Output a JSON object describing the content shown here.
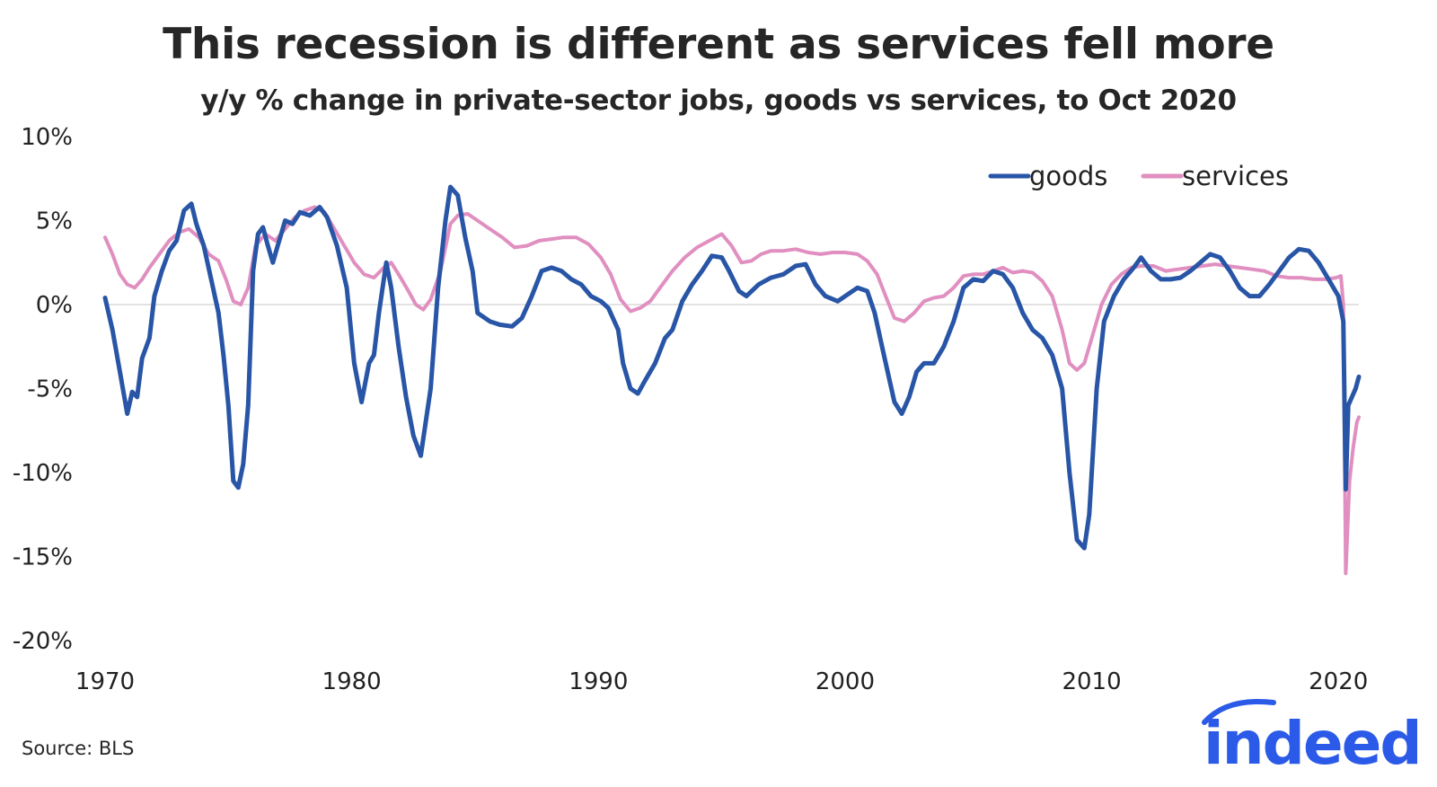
{
  "chart_data": {
    "type": "line",
    "title": "This recession is different as services fell more",
    "subtitle": "y/y % change in private-sector jobs, goods vs services, to Oct 2020",
    "xlabel": "",
    "ylabel": "",
    "xlim": [
      1970,
      2020.83
    ],
    "ylim": [
      -20,
      10
    ],
    "x_ticks": [
      "1970",
      "1980",
      "1990",
      "2000",
      "2010",
      "2020"
    ],
    "y_ticks": [
      "10%",
      "5%",
      "0%",
      "-5%",
      "-10%",
      "-15%",
      "-20%"
    ],
    "legend_position": "top-right",
    "series": [
      {
        "name": "goods",
        "color": "#2855a6",
        "points": [
          [
            1970.0,
            0.4
          ],
          [
            1970.3,
            -1.5
          ],
          [
            1970.6,
            -4.0
          ],
          [
            1970.9,
            -6.5
          ],
          [
            1971.1,
            -5.2
          ],
          [
            1971.3,
            -5.5
          ],
          [
            1971.5,
            -3.2
          ],
          [
            1971.8,
            -2.0
          ],
          [
            1972.0,
            0.5
          ],
          [
            1972.3,
            2.0
          ],
          [
            1972.6,
            3.2
          ],
          [
            1972.9,
            3.8
          ],
          [
            1973.2,
            5.6
          ],
          [
            1973.5,
            6.0
          ],
          [
            1973.7,
            4.8
          ],
          [
            1974.0,
            3.5
          ],
          [
            1974.3,
            1.5
          ],
          [
            1974.6,
            -0.5
          ],
          [
            1974.8,
            -3.0
          ],
          [
            1975.0,
            -6.0
          ],
          [
            1975.2,
            -10.5
          ],
          [
            1975.4,
            -10.9
          ],
          [
            1975.6,
            -9.5
          ],
          [
            1975.8,
            -6.0
          ],
          [
            1976.0,
            2.0
          ],
          [
            1976.2,
            4.2
          ],
          [
            1976.4,
            4.6
          ],
          [
            1976.6,
            3.5
          ],
          [
            1976.8,
            2.5
          ],
          [
            1977.0,
            3.5
          ],
          [
            1977.3,
            5.0
          ],
          [
            1977.6,
            4.8
          ],
          [
            1977.9,
            5.5
          ],
          [
            1978.3,
            5.3
          ],
          [
            1978.7,
            5.8
          ],
          [
            1979.0,
            5.2
          ],
          [
            1979.4,
            3.5
          ],
          [
            1979.8,
            1.0
          ],
          [
            1980.1,
            -3.5
          ],
          [
            1980.4,
            -5.8
          ],
          [
            1980.7,
            -3.5
          ],
          [
            1980.9,
            -3.0
          ],
          [
            1981.1,
            -0.5
          ],
          [
            1981.4,
            2.5
          ],
          [
            1981.6,
            1.0
          ],
          [
            1981.9,
            -2.5
          ],
          [
            1982.2,
            -5.5
          ],
          [
            1982.5,
            -7.8
          ],
          [
            1982.8,
            -9.0
          ],
          [
            1983.0,
            -7.0
          ],
          [
            1983.2,
            -5.0
          ],
          [
            1983.5,
            1.0
          ],
          [
            1983.8,
            5.0
          ],
          [
            1984.0,
            7.0
          ],
          [
            1984.3,
            6.5
          ],
          [
            1984.6,
            4.0
          ],
          [
            1984.9,
            2.0
          ],
          [
            1985.1,
            -0.5
          ],
          [
            1985.6,
            -1.0
          ],
          [
            1986.0,
            -1.2
          ],
          [
            1986.5,
            -1.3
          ],
          [
            1986.9,
            -0.8
          ],
          [
            1987.3,
            0.5
          ],
          [
            1987.7,
            2.0
          ],
          [
            1988.1,
            2.2
          ],
          [
            1988.5,
            2.0
          ],
          [
            1988.9,
            1.5
          ],
          [
            1989.3,
            1.2
          ],
          [
            1989.7,
            0.5
          ],
          [
            1990.1,
            0.2
          ],
          [
            1990.4,
            -0.2
          ],
          [
            1990.8,
            -1.5
          ],
          [
            1991.0,
            -3.5
          ],
          [
            1991.3,
            -5.0
          ],
          [
            1991.6,
            -5.3
          ],
          [
            1991.9,
            -4.5
          ],
          [
            1992.3,
            -3.5
          ],
          [
            1992.7,
            -2.0
          ],
          [
            1993.0,
            -1.5
          ],
          [
            1993.4,
            0.2
          ],
          [
            1993.8,
            1.2
          ],
          [
            1994.2,
            2.0
          ],
          [
            1994.6,
            2.9
          ],
          [
            1995.0,
            2.8
          ],
          [
            1995.3,
            2.0
          ],
          [
            1995.7,
            0.8
          ],
          [
            1996.0,
            0.5
          ],
          [
            1996.5,
            1.2
          ],
          [
            1997.0,
            1.6
          ],
          [
            1997.5,
            1.8
          ],
          [
            1998.0,
            2.3
          ],
          [
            1998.4,
            2.4
          ],
          [
            1998.8,
            1.2
          ],
          [
            1999.2,
            0.5
          ],
          [
            1999.7,
            0.2
          ],
          [
            2000.1,
            0.6
          ],
          [
            2000.5,
            1.0
          ],
          [
            2000.9,
            0.8
          ],
          [
            2001.2,
            -0.5
          ],
          [
            2001.5,
            -2.5
          ],
          [
            2001.8,
            -4.5
          ],
          [
            2002.0,
            -5.8
          ],
          [
            2002.3,
            -6.5
          ],
          [
            2002.6,
            -5.5
          ],
          [
            2002.9,
            -4.0
          ],
          [
            2003.2,
            -3.5
          ],
          [
            2003.6,
            -3.5
          ],
          [
            2004.0,
            -2.5
          ],
          [
            2004.4,
            -1.0
          ],
          [
            2004.8,
            1.0
          ],
          [
            2005.2,
            1.5
          ],
          [
            2005.6,
            1.4
          ],
          [
            2006.0,
            2.0
          ],
          [
            2006.4,
            1.8
          ],
          [
            2006.8,
            1.0
          ],
          [
            2007.2,
            -0.5
          ],
          [
            2007.6,
            -1.5
          ],
          [
            2008.0,
            -2.0
          ],
          [
            2008.4,
            -3.0
          ],
          [
            2008.8,
            -5.0
          ],
          [
            2009.1,
            -10.0
          ],
          [
            2009.4,
            -14.0
          ],
          [
            2009.7,
            -14.5
          ],
          [
            2009.9,
            -12.5
          ],
          [
            2010.2,
            -5.0
          ],
          [
            2010.5,
            -1.0
          ],
          [
            2010.9,
            0.5
          ],
          [
            2011.3,
            1.5
          ],
          [
            2011.7,
            2.2
          ],
          [
            2012.0,
            2.8
          ],
          [
            2012.4,
            2.0
          ],
          [
            2012.8,
            1.5
          ],
          [
            2013.2,
            1.5
          ],
          [
            2013.6,
            1.6
          ],
          [
            2014.0,
            2.0
          ],
          [
            2014.4,
            2.5
          ],
          [
            2014.8,
            3.0
          ],
          [
            2015.2,
            2.8
          ],
          [
            2015.6,
            2.0
          ],
          [
            2016.0,
            1.0
          ],
          [
            2016.4,
            0.5
          ],
          [
            2016.8,
            0.5
          ],
          [
            2017.2,
            1.2
          ],
          [
            2017.6,
            2.0
          ],
          [
            2018.0,
            2.8
          ],
          [
            2018.4,
            3.3
          ],
          [
            2018.8,
            3.2
          ],
          [
            2019.2,
            2.5
          ],
          [
            2019.6,
            1.5
          ],
          [
            2020.0,
            0.5
          ],
          [
            2020.2,
            -1.0
          ],
          [
            2020.3,
            -11.0
          ],
          [
            2020.4,
            -6.0
          ],
          [
            2020.55,
            -5.5
          ],
          [
            2020.7,
            -5.0
          ],
          [
            2020.83,
            -4.3
          ]
        ]
      },
      {
        "name": "services",
        "color": "#e08fc0",
        "points": [
          [
            1970.0,
            4.0
          ],
          [
            1970.3,
            3.0
          ],
          [
            1970.6,
            1.8
          ],
          [
            1970.9,
            1.2
          ],
          [
            1971.2,
            1.0
          ],
          [
            1971.5,
            1.5
          ],
          [
            1971.8,
            2.2
          ],
          [
            1972.2,
            3.0
          ],
          [
            1972.6,
            3.8
          ],
          [
            1973.0,
            4.3
          ],
          [
            1973.4,
            4.5
          ],
          [
            1973.8,
            4.0
          ],
          [
            1974.2,
            3.0
          ],
          [
            1974.6,
            2.6
          ],
          [
            1974.9,
            1.5
          ],
          [
            1975.2,
            0.2
          ],
          [
            1975.5,
            0.0
          ],
          [
            1975.8,
            1.0
          ],
          [
            1976.1,
            3.5
          ],
          [
            1976.5,
            4.2
          ],
          [
            1976.9,
            3.8
          ],
          [
            1977.3,
            4.5
          ],
          [
            1977.7,
            5.2
          ],
          [
            1978.1,
            5.6
          ],
          [
            1978.5,
            5.8
          ],
          [
            1978.9,
            5.5
          ],
          [
            1979.3,
            4.5
          ],
          [
            1979.7,
            3.5
          ],
          [
            1980.1,
            2.5
          ],
          [
            1980.5,
            1.8
          ],
          [
            1980.9,
            1.6
          ],
          [
            1981.3,
            2.2
          ],
          [
            1981.6,
            2.5
          ],
          [
            1981.9,
            1.8
          ],
          [
            1982.3,
            0.8
          ],
          [
            1982.6,
            0.0
          ],
          [
            1982.9,
            -0.3
          ],
          [
            1983.2,
            0.3
          ],
          [
            1983.6,
            2.0
          ],
          [
            1984.0,
            4.8
          ],
          [
            1984.3,
            5.3
          ],
          [
            1984.7,
            5.4
          ],
          [
            1985.1,
            5.0
          ],
          [
            1985.6,
            4.5
          ],
          [
            1986.1,
            4.0
          ],
          [
            1986.6,
            3.4
          ],
          [
            1987.1,
            3.5
          ],
          [
            1987.6,
            3.8
          ],
          [
            1988.1,
            3.9
          ],
          [
            1988.6,
            4.0
          ],
          [
            1989.1,
            4.0
          ],
          [
            1989.6,
            3.6
          ],
          [
            1990.1,
            2.8
          ],
          [
            1990.5,
            1.8
          ],
          [
            1990.9,
            0.3
          ],
          [
            1991.3,
            -0.4
          ],
          [
            1991.7,
            -0.2
          ],
          [
            1992.1,
            0.2
          ],
          [
            1992.5,
            1.0
          ],
          [
            1993.0,
            2.0
          ],
          [
            1993.5,
            2.8
          ],
          [
            1994.0,
            3.4
          ],
          [
            1994.5,
            3.8
          ],
          [
            1995.0,
            4.2
          ],
          [
            1995.4,
            3.5
          ],
          [
            1995.8,
            2.5
          ],
          [
            1996.2,
            2.6
          ],
          [
            1996.6,
            3.0
          ],
          [
            1997.0,
            3.2
          ],
          [
            1997.5,
            3.2
          ],
          [
            1998.0,
            3.3
          ],
          [
            1998.5,
            3.1
          ],
          [
            1999.0,
            3.0
          ],
          [
            1999.5,
            3.1
          ],
          [
            2000.0,
            3.1
          ],
          [
            2000.5,
            3.0
          ],
          [
            2000.9,
            2.6
          ],
          [
            2001.3,
            1.8
          ],
          [
            2001.7,
            0.3
          ],
          [
            2002.0,
            -0.8
          ],
          [
            2002.4,
            -1.0
          ],
          [
            2002.8,
            -0.5
          ],
          [
            2003.2,
            0.2
          ],
          [
            2003.6,
            0.4
          ],
          [
            2004.0,
            0.5
          ],
          [
            2004.4,
            1.0
          ],
          [
            2004.8,
            1.7
          ],
          [
            2005.2,
            1.8
          ],
          [
            2005.6,
            1.8
          ],
          [
            2006.0,
            2.0
          ],
          [
            2006.4,
            2.2
          ],
          [
            2006.8,
            1.9
          ],
          [
            2007.2,
            2.0
          ],
          [
            2007.6,
            1.9
          ],
          [
            2008.0,
            1.4
          ],
          [
            2008.4,
            0.5
          ],
          [
            2008.8,
            -1.5
          ],
          [
            2009.1,
            -3.5
          ],
          [
            2009.4,
            -3.9
          ],
          [
            2009.7,
            -3.5
          ],
          [
            2010.0,
            -2.0
          ],
          [
            2010.4,
            0.0
          ],
          [
            2010.8,
            1.2
          ],
          [
            2011.2,
            1.8
          ],
          [
            2011.6,
            2.2
          ],
          [
            2012.0,
            2.3
          ],
          [
            2012.5,
            2.3
          ],
          [
            2013.0,
            2.0
          ],
          [
            2013.5,
            2.1
          ],
          [
            2014.0,
            2.2
          ],
          [
            2014.5,
            2.3
          ],
          [
            2015.0,
            2.4
          ],
          [
            2015.5,
            2.3
          ],
          [
            2016.0,
            2.2
          ],
          [
            2016.5,
            2.1
          ],
          [
            2017.0,
            2.0
          ],
          [
            2017.5,
            1.7
          ],
          [
            2018.0,
            1.6
          ],
          [
            2018.5,
            1.6
          ],
          [
            2019.0,
            1.5
          ],
          [
            2019.5,
            1.5
          ],
          [
            2019.9,
            1.6
          ],
          [
            2020.1,
            1.7
          ],
          [
            2020.2,
            0.0
          ],
          [
            2020.3,
            -16.0
          ],
          [
            2020.45,
            -10.5
          ],
          [
            2020.6,
            -8.5
          ],
          [
            2020.75,
            -7.0
          ],
          [
            2020.83,
            -6.7
          ]
        ]
      }
    ]
  },
  "source_text": "Source: BLS",
  "logo_text": "indeed"
}
